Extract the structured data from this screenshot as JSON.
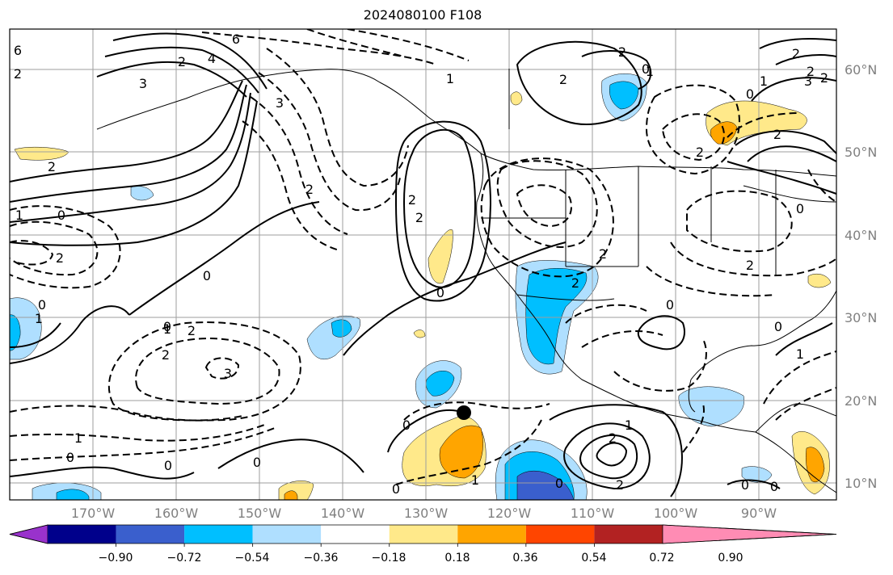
{
  "title": "2024080100 F108",
  "lat_labels": [
    "60°N",
    "50°N",
    "40°N",
    "30°N",
    "20°N",
    "10°N"
  ],
  "lon_labels": [
    "170°W",
    "160°W",
    "150°W",
    "140°W",
    "130°W",
    "120°W",
    "110°W",
    "100°W",
    "90°W"
  ],
  "colorbar": {
    "tick_labels": [
      "−0.90",
      "−0.72",
      "−0.54",
      "−0.36",
      "−0.18",
      "0.18",
      "0.36",
      "0.54",
      "0.72",
      "0.90"
    ],
    "colors": [
      "#9932cc",
      "#00008b",
      "#3a5fcd",
      "#00bfff",
      "#afdfff",
      "#ffffff",
      "#ffe98a",
      "#ffa500",
      "#ff4500",
      "#b22222",
      "#ff8cb4"
    ]
  },
  "contour_labels": [
    "6",
    "6",
    "2",
    "4",
    "3",
    "3",
    "2",
    "2",
    "1",
    "0",
    "2",
    "0",
    "1",
    "0",
    "1",
    "0",
    "2",
    "2",
    "3",
    "1",
    "0",
    "0",
    "1",
    "2",
    "2",
    "1",
    "0",
    "2",
    "1",
    "0",
    "2",
    "2",
    "2",
    "0",
    "0",
    "0",
    "1",
    "2",
    "2",
    "0",
    "2",
    "2",
    "2",
    "2",
    "3",
    "1",
    "0",
    "2",
    "0",
    "0",
    "1",
    "0",
    "0",
    "0",
    "2",
    "2"
  ],
  "marker": {
    "name": "storm-center"
  }
}
